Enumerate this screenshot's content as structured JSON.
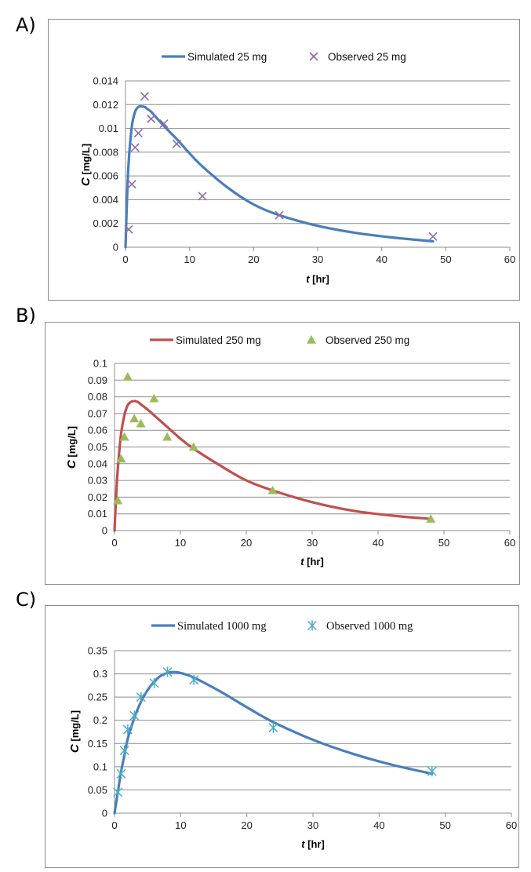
{
  "chart_data": [
    {
      "panel_label": "A)",
      "type": "scatter",
      "xlabel_italic": "t",
      "xlabel_unit": "[hr]",
      "ylabel_italic": "C",
      "ylabel_unit": "[mg/L]",
      "xlim": [
        0,
        60
      ],
      "xticks": [
        0,
        10,
        20,
        30,
        40,
        50,
        60
      ],
      "ylim": [
        0,
        0.014
      ],
      "yticks": [
        0,
        0.002,
        0.004,
        0.006,
        0.008,
        0.01,
        0.012,
        0.014
      ],
      "ytick_labels": [
        "0",
        "0.002",
        "0.004",
        "0.006",
        "0.008",
        "0.01",
        "0.012",
        "0.014"
      ],
      "grid": "horizontal",
      "legend_position": "top-center",
      "legend_font": "sans",
      "colors": {
        "line": "#4a7ebb",
        "marker": "#8e6bb0"
      },
      "series": [
        {
          "name": "Simulated 25 mg",
          "kind": "line",
          "color": "#4a7ebb",
          "x": [
            0,
            0.25,
            0.5,
            1,
            1.5,
            2,
            2.5,
            3,
            3.5,
            4,
            5,
            6,
            8,
            10,
            12,
            16,
            20,
            24,
            30,
            36,
            42,
            48
          ],
          "y": [
            0,
            0.0042,
            0.0072,
            0.0102,
            0.0114,
            0.0118,
            0.01185,
            0.0118,
            0.0116,
            0.0114,
            0.0108,
            0.0102,
            0.0091,
            0.0079,
            0.0068,
            0.005,
            0.0036,
            0.0027,
            0.0018,
            0.0012,
            0.0008,
            0.0005
          ]
        },
        {
          "name": "Observed 25 mg",
          "kind": "marker",
          "marker": "x",
          "color": "#8e6bb0",
          "x": [
            0.5,
            1,
            1.5,
            2,
            3,
            4,
            6,
            8,
            12,
            24,
            48
          ],
          "y": [
            0.0015,
            0.0053,
            0.0084,
            0.0096,
            0.0127,
            0.0108,
            0.0104,
            0.0087,
            0.0043,
            0.0027,
            0.0009
          ]
        }
      ]
    },
    {
      "panel_label": "B)",
      "type": "scatter",
      "xlabel_italic": "t",
      "xlabel_unit": "[hr]",
      "ylabel_italic": "C",
      "ylabel_unit": "[mg/L]",
      "xlim": [
        0,
        60
      ],
      "xticks": [
        0,
        10,
        20,
        30,
        40,
        50,
        60
      ],
      "ylim": [
        0,
        0.1
      ],
      "yticks": [
        0,
        0.01,
        0.02,
        0.03,
        0.04,
        0.05,
        0.06,
        0.07,
        0.08,
        0.09,
        0.1
      ],
      "ytick_labels": [
        "0",
        "0.01",
        "0.02",
        "0.03",
        "0.04",
        "0.05",
        "0.06",
        "0.07",
        "0.08",
        "0.09",
        "0.1"
      ],
      "grid": "horizontal",
      "legend_position": "top-center",
      "legend_font": "sans",
      "colors": {
        "line": "#c0504d",
        "marker": "#9bbb59"
      },
      "series": [
        {
          "name": "Simulated 250 mg",
          "kind": "line",
          "color": "#c0504d",
          "x": [
            0,
            0.25,
            0.5,
            1,
            1.5,
            2,
            2.5,
            3,
            3.5,
            4,
            5,
            6,
            8,
            10,
            12,
            16,
            20,
            24,
            30,
            36,
            42,
            48
          ],
          "y": [
            0,
            0.021,
            0.037,
            0.058,
            0.069,
            0.075,
            0.077,
            0.0775,
            0.077,
            0.0755,
            0.0725,
            0.069,
            0.062,
            0.055,
            0.049,
            0.039,
            0.03,
            0.024,
            0.017,
            0.012,
            0.009,
            0.007
          ]
        },
        {
          "name": "Observed 250 mg",
          "kind": "marker",
          "marker": "triangle",
          "color": "#9bbb59",
          "x": [
            0.5,
            1,
            1.5,
            2,
            3,
            4,
            6,
            8,
            12,
            24,
            48
          ],
          "y": [
            0.018,
            0.043,
            0.056,
            0.092,
            0.067,
            0.064,
            0.079,
            0.056,
            0.05,
            0.024,
            0.007
          ]
        }
      ]
    },
    {
      "panel_label": "C)",
      "type": "scatter",
      "xlabel_italic": "t",
      "xlabel_unit": "[hr]",
      "ylabel_italic": "C",
      "ylabel_unit": "[mg/L]",
      "xlim": [
        0,
        60
      ],
      "xticks": [
        0,
        10,
        20,
        30,
        40,
        50,
        60
      ],
      "ylim": [
        0,
        0.35
      ],
      "yticks": [
        0,
        0.05,
        0.1,
        0.15,
        0.2,
        0.25,
        0.3,
        0.35
      ],
      "ytick_labels": [
        "0",
        "0.05",
        "0.1",
        "0.15",
        "0.2",
        "0.25",
        "0.3",
        "0.35"
      ],
      "grid": "horizontal",
      "legend_position": "top-center",
      "legend_font": "serif",
      "colors": {
        "line": "#4a7ebb",
        "marker": "#4bacc6"
      },
      "series": [
        {
          "name": "Simulated 1000 mg",
          "kind": "line",
          "color": "#4a7ebb",
          "x": [
            0,
            0.5,
            1,
            1.5,
            2,
            3,
            4,
            5,
            6,
            7,
            8,
            9,
            10,
            12,
            16,
            20,
            24,
            30,
            36,
            42,
            48
          ],
          "y": [
            0,
            0.045,
            0.09,
            0.125,
            0.16,
            0.205,
            0.24,
            0.265,
            0.283,
            0.296,
            0.302,
            0.304,
            0.302,
            0.292,
            0.262,
            0.228,
            0.196,
            0.158,
            0.128,
            0.104,
            0.085
          ]
        },
        {
          "name": "Observed 1000 mg",
          "kind": "marker",
          "marker": "asterisk",
          "color": "#4bacc6",
          "x": [
            0.5,
            1,
            1.5,
            2,
            3,
            4,
            6,
            8,
            12,
            24,
            48
          ],
          "y": [
            0.045,
            0.085,
            0.135,
            0.18,
            0.21,
            0.25,
            0.28,
            0.304,
            0.287,
            0.184,
            0.09
          ]
        }
      ]
    }
  ]
}
